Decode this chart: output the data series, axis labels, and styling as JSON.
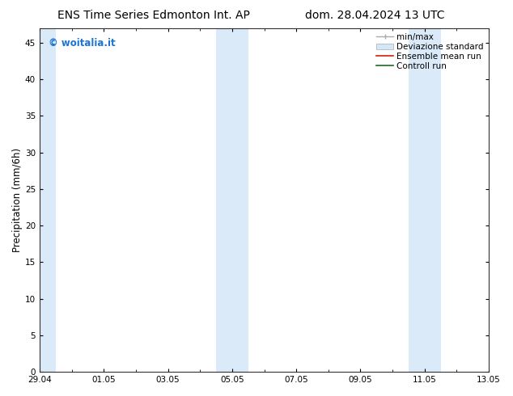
{
  "title_left": "ENS Time Series Edmonton Int. AP",
  "title_right": "dom. 28.04.2024 13 UTC",
  "ylabel": "Precipitation (mm/6h)",
  "watermark": "© woitalia.it",
  "watermark_color": "#1a75d2",
  "ylim": [
    0,
    47
  ],
  "yticks": [
    0,
    5,
    10,
    15,
    20,
    25,
    30,
    35,
    40,
    45
  ],
  "background_color": "#ffffff",
  "plot_bg_color": "#ffffff",
  "shaded_band_color": "#daeaf8",
  "x_total_days": 14,
  "xtick_labels": [
    "29.04",
    "01.05",
    "03.05",
    "05.05",
    "07.05",
    "09.05",
    "11.05",
    "13.05"
  ],
  "xtick_positions_days": [
    0,
    2,
    4,
    6,
    8,
    10,
    12,
    14
  ],
  "shaded_regions": [
    {
      "start_day": -0.15,
      "end_day": 0.5
    },
    {
      "start_day": 5.5,
      "end_day": 6.0
    },
    {
      "start_day": 6.0,
      "end_day": 6.5
    },
    {
      "start_day": 11.5,
      "end_day": 12.0
    },
    {
      "start_day": 12.0,
      "end_day": 12.5
    }
  ],
  "legend_items": [
    {
      "label": "min/max",
      "color": "#aaaaaa",
      "lw": 1.0
    },
    {
      "label": "Deviazione standard",
      "color": "#d0e8f8",
      "lw": 6.0
    },
    {
      "label": "Ensemble mean run",
      "color": "#cc2200",
      "lw": 1.2
    },
    {
      "label": "Controll run",
      "color": "#226622",
      "lw": 1.2
    }
  ],
  "title_fontsize": 10,
  "tick_fontsize": 7.5,
  "legend_fontsize": 7.5,
  "ylabel_fontsize": 8.5,
  "watermark_fontsize": 8.5
}
